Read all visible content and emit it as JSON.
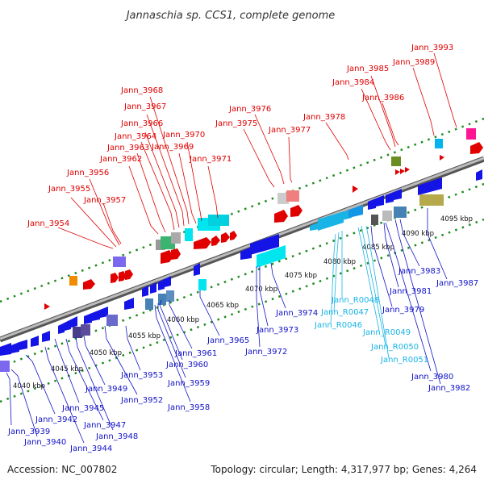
{
  "title": "Jannaschia sp. CCS1, complete genome",
  "accession": "Accession: NC_007802",
  "summary": "Topology: circular; Length: 4,317,977 bp; Genes: 4,264",
  "colors": {
    "backbone": "#888888",
    "dots": "#1e8c1e",
    "label_top": "#e00000",
    "label_bottom": "#1212c8",
    "label_rna": "#19b4e6"
  },
  "kbp_labels": [
    "4040 kbp",
    "4045 kbp",
    "4050 kbp",
    "4055 kbp",
    "4060 kbp",
    "4065 kbp",
    "4070 kbp",
    "4075 kbp",
    "4080 kbp",
    "4085 kbp",
    "4090 kbp",
    "4095 kbp"
  ],
  "top_labels": [
    "Jann_3954",
    "Jann_3955",
    "Jann_3956",
    "Jann_3957",
    "Jann_3962",
    "Jann_3963",
    "Jann_3964",
    "Jann_3966",
    "Jann_3967",
    "Jann_3968",
    "Jann_3969",
    "Jann_3970",
    "Jann_3971",
    "Jann_3975",
    "Jann_3976",
    "Jann_3977",
    "Jann_3978",
    "Jann_3984",
    "Jann_3985",
    "Jann_3986",
    "Jann_3989",
    "Jann_3993"
  ],
  "bottom_labels": [
    "Jann_3939",
    "Jann_3940",
    "Jann_3942",
    "Jann_3944",
    "Jann_3945",
    "Jann_3947",
    "Jann_3948",
    "Jann_3949",
    "Jann_3952",
    "Jann_3953",
    "Jann_3958",
    "Jann_3959",
    "Jann_3960",
    "Jann_3961",
    "Jann_3965",
    "Jann_3972",
    "Jann_3973",
    "Jann_3974",
    "Jann_3979",
    "Jann_3980",
    "Jann_3981",
    "Jann_3982",
    "Jann_3983",
    "Jann_3987"
  ],
  "rna_labels": [
    "Jann_R0046",
    "Jann_R0047",
    "Jann_R0048",
    "Jann_R0049",
    "Jann_R0050",
    "Jann_R0051"
  ]
}
